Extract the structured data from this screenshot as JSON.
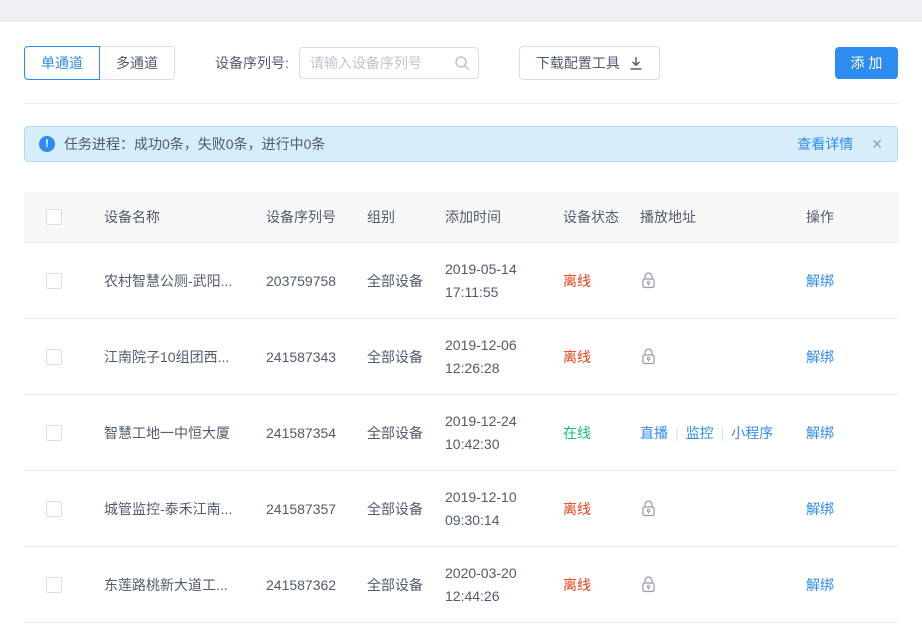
{
  "toolbar": {
    "tabs": {
      "single": "单通道",
      "multi": "多通道"
    },
    "serial_label": "设备序列号:",
    "search_placeholder": "请输入设备序列号",
    "download_label": "下载配置工具",
    "add_label": "添 加"
  },
  "banner": {
    "icon_glyph": "!",
    "text": "任务进程：成功0条，失败0条，进行中0条",
    "detail_label": "查看详情",
    "close_glyph": "✕"
  },
  "table": {
    "headers": [
      "设备名称",
      "设备序列号",
      "组别",
      "添加时间",
      "设备状态",
      "播放地址",
      "操作"
    ],
    "rows": [
      {
        "name": "农村智慧公厕-武阳...",
        "serial": "203759758",
        "group": "全部设备",
        "date": "2019-05-14",
        "time": "17:11:55",
        "status": "离线",
        "online": false,
        "links": [],
        "action": "解绑"
      },
      {
        "name": "江南院子10组团西...",
        "serial": "241587343",
        "group": "全部设备",
        "date": "2019-12-06",
        "time": "12:26:28",
        "status": "离线",
        "online": false,
        "links": [],
        "action": "解绑"
      },
      {
        "name": "智慧工地一中恒大厦",
        "serial": "241587354",
        "group": "全部设备",
        "date": "2019-12-24",
        "time": "10:42:30",
        "status": "在线",
        "online": true,
        "links": [
          "直播",
          "监控",
          "小程序"
        ],
        "action": "解绑"
      },
      {
        "name": "城管监控-泰禾江南...",
        "serial": "241587357",
        "group": "全部设备",
        "date": "2019-12-10",
        "time": "09:30:14",
        "status": "离线",
        "online": false,
        "links": [],
        "action": "解绑"
      },
      {
        "name": "东莲路桃新大道工...",
        "serial": "241587362",
        "group": "全部设备",
        "date": "2020-03-20",
        "time": "12:44:26",
        "status": "离线",
        "online": false,
        "links": [],
        "action": "解绑"
      }
    ]
  },
  "icons": {
    "search": "search-icon",
    "download": "download-icon",
    "info": "info-icon",
    "close": "close-icon",
    "lock": "lock-icon"
  },
  "colors": {
    "accent": "#2d8cf0",
    "offline_red": "#ed4014",
    "online_green": "#19be6b",
    "banner_bg": "#d8edfa",
    "banner_border": "#b2ddf7",
    "table_header_bg": "#f8f8f9",
    "border": "#e8eaec"
  }
}
